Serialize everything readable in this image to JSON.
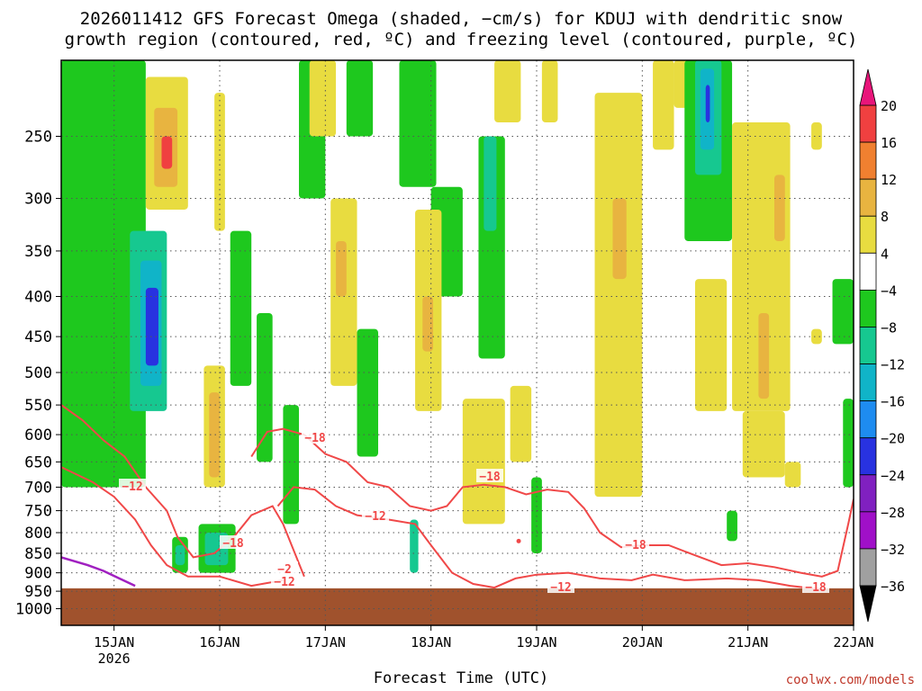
{
  "title_line1": "2026011412 GFS Forecast Omega (shaded, −cm/s) for KDUJ with dendritic snow",
  "title_line2": "growth region (contoured, red, ºC) and freezing level (contoured, purple, ºC)",
  "xlabel": "Forecast Time (UTC)",
  "credit": "coolwx.com/models",
  "chart_data": {
    "type": "heatmap",
    "x_ticks": [
      "15JAN",
      "16JAN",
      "17JAN",
      "18JAN",
      "19JAN",
      "20JAN",
      "21JAN",
      "22JAN"
    ],
    "x_year_label": "2026",
    "y_ticks": [
      250,
      300,
      350,
      400,
      450,
      500,
      550,
      600,
      650,
      700,
      750,
      800,
      850,
      900,
      950,
      1000
    ],
    "y_range_hpa": [
      200,
      1050
    ],
    "x_range_days": [
      14.5,
      22.0
    ],
    "grid": true,
    "colorbar": {
      "tick_labels": [
        "20",
        "16",
        "12",
        "8",
        "4",
        "−4",
        "−8",
        "−12",
        "−16",
        "−20",
        "−24",
        "−28",
        "−32",
        "−36"
      ],
      "colors": {
        "ge20": "#e8157a",
        "16_20": "#f04040",
        "12_16": "#f08030",
        "8_12": "#e8b440",
        "4_8": "#e8dc40",
        "neg4_4": "#ffffff",
        "neg8_neg4": "#1ec81e",
        "neg12_neg8": "#16c890",
        "neg16_neg12": "#10b4c8",
        "neg20_neg16": "#1e8cf0",
        "neg24_neg20": "#2832e0",
        "neg28_neg24": "#8020c0",
        "neg32_neg28": "#a010c8",
        "neg36_neg32": "#a0a0a0",
        "le_neg36": "#000000"
      }
    },
    "contour_labels": [
      "−12",
      "−18",
      "−18",
      "−12",
      "−18",
      "−18",
      "−12",
      "−12",
      "−18",
      "−2"
    ],
    "contour_colors": {
      "dgz": "#f04848",
      "freezing": "#a020c0",
      "ground": "#a0522d"
    },
    "shaded_regions": [
      {
        "c": "green",
        "x0": 14.5,
        "x1": 15.3,
        "p0": 200,
        "p1": 700
      },
      {
        "c": "teal",
        "x0": 15.15,
        "x1": 15.5,
        "p0": 330,
        "p1": 560
      },
      {
        "c": "cyan",
        "x0": 15.25,
        "x1": 15.45,
        "p0": 360,
        "p1": 520
      },
      {
        "c": "blue",
        "x0": 15.3,
        "x1": 15.42,
        "p0": 390,
        "p1": 490
      },
      {
        "c": "yellow",
        "x0": 15.3,
        "x1": 15.7,
        "p0": 210,
        "p1": 310
      },
      {
        "c": "orange",
        "x0": 15.38,
        "x1": 15.6,
        "p0": 230,
        "p1": 290
      },
      {
        "c": "red",
        "x0": 15.45,
        "x1": 15.55,
        "p0": 250,
        "p1": 275
      },
      {
        "c": "green",
        "x0": 14.6,
        "x1": 15.0,
        "p0": 570,
        "p1": 700
      },
      {
        "c": "green",
        "x0": 15.55,
        "x1": 15.7,
        "p0": 810,
        "p1": 900
      },
      {
        "c": "teal",
        "x0": 15.58,
        "x1": 15.67,
        "p0": 830,
        "p1": 880
      },
      {
        "c": "green",
        "x0": 15.8,
        "x1": 16.15,
        "p0": 780,
        "p1": 900
      },
      {
        "c": "teal",
        "x0": 15.86,
        "x1": 16.08,
        "p0": 800,
        "p1": 880
      },
      {
        "c": "yellow",
        "x0": 15.85,
        "x1": 16.05,
        "p0": 490,
        "p1": 700
      },
      {
        "c": "orange",
        "x0": 15.9,
        "x1": 16.0,
        "p0": 530,
        "p1": 680
      },
      {
        "c": "yellow",
        "x0": 15.95,
        "x1": 16.05,
        "p0": 220,
        "p1": 330
      },
      {
        "c": "green",
        "x0": 16.1,
        "x1": 16.3,
        "p0": 330,
        "p1": 520
      },
      {
        "c": "green",
        "x0": 16.35,
        "x1": 16.5,
        "p0": 420,
        "p1": 650
      },
      {
        "c": "green",
        "x0": 16.6,
        "x1": 16.75,
        "p0": 550,
        "p1": 780
      },
      {
        "c": "green",
        "x0": 16.75,
        "x1": 17.0,
        "p0": 200,
        "p1": 300
      },
      {
        "c": "yellow",
        "x0": 17.05,
        "x1": 17.3,
        "p0": 300,
        "p1": 520
      },
      {
        "c": "orange",
        "x0": 17.1,
        "x1": 17.2,
        "p0": 340,
        "p1": 400
      },
      {
        "c": "yellow",
        "x0": 16.85,
        "x1": 17.1,
        "p0": 200,
        "p1": 250
      },
      {
        "c": "green",
        "x0": 17.2,
        "x1": 17.45,
        "p0": 200,
        "p1": 250
      },
      {
        "c": "green",
        "x0": 17.3,
        "x1": 17.5,
        "p0": 440,
        "p1": 640
      },
      {
        "c": "green",
        "x0": 17.7,
        "x1": 18.05,
        "p0": 200,
        "p1": 290
      },
      {
        "c": "green",
        "x0": 18.0,
        "x1": 18.3,
        "p0": 290,
        "p1": 400
      },
      {
        "c": "yellow",
        "x0": 17.85,
        "x1": 18.1,
        "p0": 310,
        "p1": 560
      },
      {
        "c": "orange",
        "x0": 17.92,
        "x1": 18.02,
        "p0": 400,
        "p1": 470
      },
      {
        "c": "teal",
        "x0": 17.8,
        "x1": 17.88,
        "p0": 770,
        "p1": 900
      },
      {
        "c": "green",
        "x0": 18.45,
        "x1": 18.7,
        "p0": 250,
        "p1": 480
      },
      {
        "c": "teal",
        "x0": 18.5,
        "x1": 18.62,
        "p0": 250,
        "p1": 330
      },
      {
        "c": "yellow",
        "x0": 18.6,
        "x1": 18.85,
        "p0": 200,
        "p1": 240
      },
      {
        "c": "yellow",
        "x0": 18.3,
        "x1": 18.7,
        "p0": 540,
        "p1": 780
      },
      {
        "c": "yellow",
        "x0": 18.75,
        "x1": 18.95,
        "p0": 520,
        "p1": 650
      },
      {
        "c": "green",
        "x0": 18.95,
        "x1": 19.05,
        "p0": 680,
        "p1": 850
      },
      {
        "c": "yellow",
        "x0": 19.05,
        "x1": 19.2,
        "p0": 200,
        "p1": 240
      },
      {
        "c": "yellow",
        "x0": 19.55,
        "x1": 20.0,
        "p0": 220,
        "p1": 720
      },
      {
        "c": "orange",
        "x0": 19.72,
        "x1": 19.85,
        "p0": 300,
        "p1": 380
      },
      {
        "c": "yellow",
        "x0": 20.1,
        "x1": 20.3,
        "p0": 200,
        "p1": 260
      },
      {
        "c": "yellow",
        "x0": 20.3,
        "x1": 20.55,
        "p0": 200,
        "p1": 230
      },
      {
        "c": "green",
        "x0": 20.4,
        "x1": 20.85,
        "p0": 200,
        "p1": 340
      },
      {
        "c": "teal",
        "x0": 20.5,
        "x1": 20.75,
        "p0": 200,
        "p1": 280
      },
      {
        "c": "cyan",
        "x0": 20.55,
        "x1": 20.68,
        "p0": 205,
        "p1": 260
      },
      {
        "c": "blue",
        "x0": 20.6,
        "x1": 20.64,
        "p0": 215,
        "p1": 240
      },
      {
        "c": "yellow",
        "x0": 20.5,
        "x1": 20.8,
        "p0": 380,
        "p1": 560
      },
      {
        "c": "yellow",
        "x0": 20.85,
        "x1": 21.4,
        "p0": 240,
        "p1": 560
      },
      {
        "c": "orange",
        "x0": 21.1,
        "x1": 21.2,
        "p0": 420,
        "p1": 540
      },
      {
        "c": "orange",
        "x0": 21.25,
        "x1": 21.35,
        "p0": 280,
        "p1": 340
      },
      {
        "c": "yellow",
        "x0": 20.95,
        "x1": 21.35,
        "p0": 560,
        "p1": 680
      },
      {
        "c": "yellow",
        "x0": 21.35,
        "x1": 21.5,
        "p0": 650,
        "p1": 700
      },
      {
        "c": "yellow",
        "x0": 21.6,
        "x1": 21.7,
        "p0": 240,
        "p1": 260
      },
      {
        "c": "yellow",
        "x0": 21.6,
        "x1": 21.7,
        "p0": 440,
        "p1": 460
      },
      {
        "c": "green",
        "x0": 21.8,
        "x1": 22.0,
        "p0": 380,
        "p1": 460
      },
      {
        "c": "green",
        "x0": 21.9,
        "x1": 22.0,
        "p0": 540,
        "p1": 700
      },
      {
        "c": "green",
        "x0": 20.8,
        "x1": 20.9,
        "p0": 750,
        "p1": 820
      }
    ],
    "dgz_lines": [
      [
        [
          14.5,
          550
        ],
        [
          14.7,
          575
        ],
        [
          14.9,
          610
        ],
        [
          15.1,
          640
        ],
        [
          15.3,
          700
        ],
        [
          15.5,
          750
        ],
        [
          15.6,
          810
        ],
        [
          15.75,
          860
        ],
        [
          15.95,
          850
        ],
        [
          16.15,
          805
        ],
        [
          16.3,
          760
        ],
        [
          16.5,
          740
        ],
        [
          16.6,
          780
        ],
        [
          16.8,
          910
        ]
      ],
      [
        [
          16.3,
          640
        ],
        [
          16.45,
          595
        ],
        [
          16.6,
          590
        ],
        [
          16.8,
          600
        ],
        [
          17.0,
          635
        ],
        [
          17.2,
          650
        ],
        [
          17.4,
          690
        ],
        [
          17.6,
          700
        ],
        [
          17.8,
          740
        ],
        [
          18.0,
          750
        ],
        [
          18.15,
          740
        ],
        [
          18.3,
          700
        ],
        [
          18.5,
          695
        ],
        [
          18.7,
          700
        ],
        [
          18.9,
          715
        ],
        [
          19.1,
          705
        ],
        [
          19.3,
          710
        ],
        [
          19.45,
          745
        ],
        [
          19.6,
          800
        ],
        [
          19.8,
          835
        ],
        [
          20.0,
          830
        ],
        [
          20.25,
          830
        ],
        [
          20.5,
          855
        ],
        [
          20.75,
          880
        ],
        [
          21.0,
          875
        ],
        [
          21.25,
          885
        ],
        [
          21.5,
          900
        ],
        [
          21.7,
          910
        ],
        [
          21.85,
          895
        ],
        [
          21.95,
          780
        ],
        [
          22.0,
          725
        ]
      ],
      [
        [
          14.5,
          660
        ],
        [
          14.8,
          690
        ],
        [
          15.0,
          720
        ],
        [
          15.2,
          770
        ],
        [
          15.35,
          830
        ],
        [
          15.5,
          880
        ],
        [
          15.7,
          910
        ],
        [
          16.0,
          910
        ],
        [
          16.3,
          935
        ],
        [
          16.6,
          920
        ]
      ],
      [
        [
          16.55,
          740
        ],
        [
          16.7,
          700
        ],
        [
          16.9,
          705
        ],
        [
          17.1,
          740
        ],
        [
          17.3,
          760
        ],
        [
          17.6,
          770
        ],
        [
          17.85,
          780
        ],
        [
          18.0,
          830
        ],
        [
          18.2,
          900
        ],
        [
          18.4,
          930
        ],
        [
          18.6,
          940
        ],
        [
          18.8,
          915
        ],
        [
          19.0,
          905
        ],
        [
          19.3,
          900
        ],
        [
          19.6,
          915
        ],
        [
          19.9,
          920
        ],
        [
          20.1,
          905
        ],
        [
          20.4,
          920
        ],
        [
          20.8,
          915
        ],
        [
          21.1,
          920
        ],
        [
          21.4,
          935
        ],
        [
          21.7,
          945
        ]
      ]
    ],
    "freezing_line": [
      [
        14.5,
        860
      ],
      [
        14.75,
        880
      ],
      [
        14.9,
        895
      ],
      [
        15.05,
        915
      ],
      [
        15.2,
        935
      ]
    ]
  }
}
